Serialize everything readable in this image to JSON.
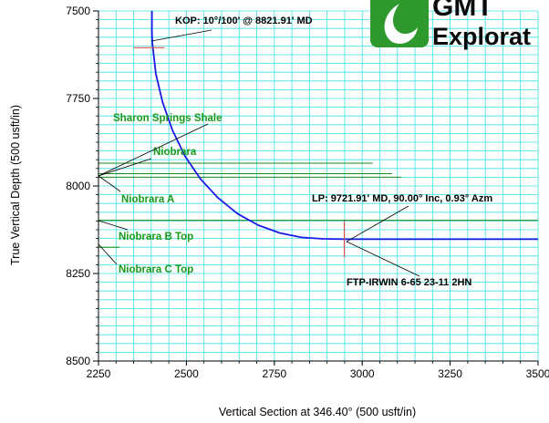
{
  "chart_data": {
    "type": "line",
    "title": "",
    "xlabel": "Vertical Section at 346.40° (500 usft/in)",
    "ylabel": "True Vertical Depth (500 usft/in)",
    "xlim": [
      2250,
      3500
    ],
    "ylim": [
      7500,
      8500
    ],
    "y_inverted": true,
    "x_ticks": [
      2250,
      2500,
      2750,
      3000,
      3250,
      3500
    ],
    "x_tick_labels": [
      "2250",
      "2500",
      "2750",
      "3000",
      "3250",
      "3500"
    ],
    "y_ticks": [
      7500,
      7750,
      8000,
      8250,
      8500
    ],
    "y_tick_labels": [
      "7500",
      "7750",
      "8000",
      "8250",
      "8500"
    ],
    "grid": true,
    "grid_color": "#40e0e0",
    "series": [
      {
        "color": "#1a1ae6",
        "x": [
          2402,
          2402,
          2403,
          2413,
          2432,
          2460,
          2496,
          2540,
          2590,
          2645,
          2704,
          2765,
          2827,
          2889,
          2949,
          3000,
          3250,
          3500
        ],
        "y": [
          7500,
          7561,
          7590,
          7680,
          7760,
          7840,
          7915,
          7980,
          8034,
          8079,
          8112,
          8134,
          8147,
          8151,
          8152,
          8152,
          8152,
          8152
        ]
      }
    ],
    "formation_lines": [
      {
        "name": "Sharon Springs Shale",
        "y": 7935,
        "x_end": 3030
      },
      {
        "name": "Niobrara",
        "y": 7965,
        "x_end": 3085
      },
      {
        "name": "Niobrara A",
        "y": 7975,
        "x_end": 3110
      },
      {
        "name": "Niobrara B Top",
        "y": 8098,
        "x_end": 3500
      },
      {
        "name": "Niobrara C Top",
        "y": 8175,
        "x_end": 2310
      }
    ],
    "markers": [
      {
        "x": 2402,
        "y": 7605,
        "color": "#e05050"
      },
      {
        "x": 2949,
        "y": 8152,
        "color": "#e05050"
      }
    ],
    "annotations": [
      {
        "text": "KOP: 10°/100' @ 8821.91' MD",
        "style": "black"
      },
      {
        "text": "LP:  9721.91' MD, 90.00° Inc, 0.93° Azm",
        "style": "black"
      },
      {
        "text": "FTP-IRWIN 6-65 23-11 2HN",
        "style": "black"
      },
      {
        "text": "Sharon Springs Shale",
        "style": "green"
      },
      {
        "text": "Niobrara",
        "style": "green"
      },
      {
        "text": "Niobrara A",
        "style": "green"
      },
      {
        "text": "Niobrara B Top",
        "style": "green"
      },
      {
        "text": "Niobrara C Top",
        "style": "green"
      }
    ]
  },
  "logo": {
    "line1": "GMT",
    "line2": "Explorat",
    "color": "#2e9a2e"
  }
}
